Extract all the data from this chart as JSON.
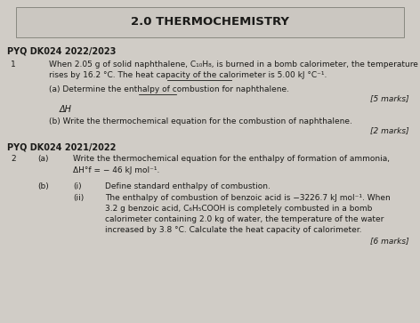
{
  "title": "2.0 THERMOCHEMISTRY",
  "bg_color": "#d0ccc6",
  "box_facecolor": "#cbc7c1",
  "box_edgecolor": "#888880",
  "text_color": "#1a1a18",
  "section1_header": "PYQ DK024 2022/2023",
  "section2_header": "PYQ DK024 2021/2022",
  "q1_num": "1",
  "q1_line1": "When 2.05 g of solid naphthalene, C₁₀H₈, is burned in a bomb calorimeter, the temperature",
  "q1_line2": "rises by 16.2 °C. The heat capacity of the calorimeter is 5.00 kJ °C⁻¹.",
  "q1a_text": "(a) Determine the enthalpy of combustion for naphthalene.",
  "q1a_marks": "[5 marks]",
  "q1_annotation": "ΔH",
  "q1b_text": "(b) Write the thermochemical equation for the combustion of naphthalene.",
  "q1b_marks": "[2 marks]",
  "q2_num": "2",
  "q2a_label": "(a)",
  "q2a_text": "Write the thermochemical equation for the enthalpy of formation of ammonia,",
  "q2a_formula": "ΔH°f = − 46 kJ mol⁻¹.",
  "q2b_label": "(b)",
  "q2b_i_label": "(i)",
  "q2b_i_text": "Define standard enthalpy of combustion.",
  "q2b_ii_label": "(ii)",
  "q2b_ii_line1": "The enthalpy of combustion of benzoic acid is −3226.7 kJ mol⁻¹. When",
  "q2b_ii_line2": "3.2 g benzoic acid, C₆H₅COOH is completely combusted in a bomb",
  "q2b_ii_line3": "calorimeter containing 2.0 kg of water, the temperature of the water",
  "q2b_ii_line4": "increased by 3.8 °C. Calculate the heat capacity of calorimeter.",
  "q2b_marks": "[6 marks]"
}
